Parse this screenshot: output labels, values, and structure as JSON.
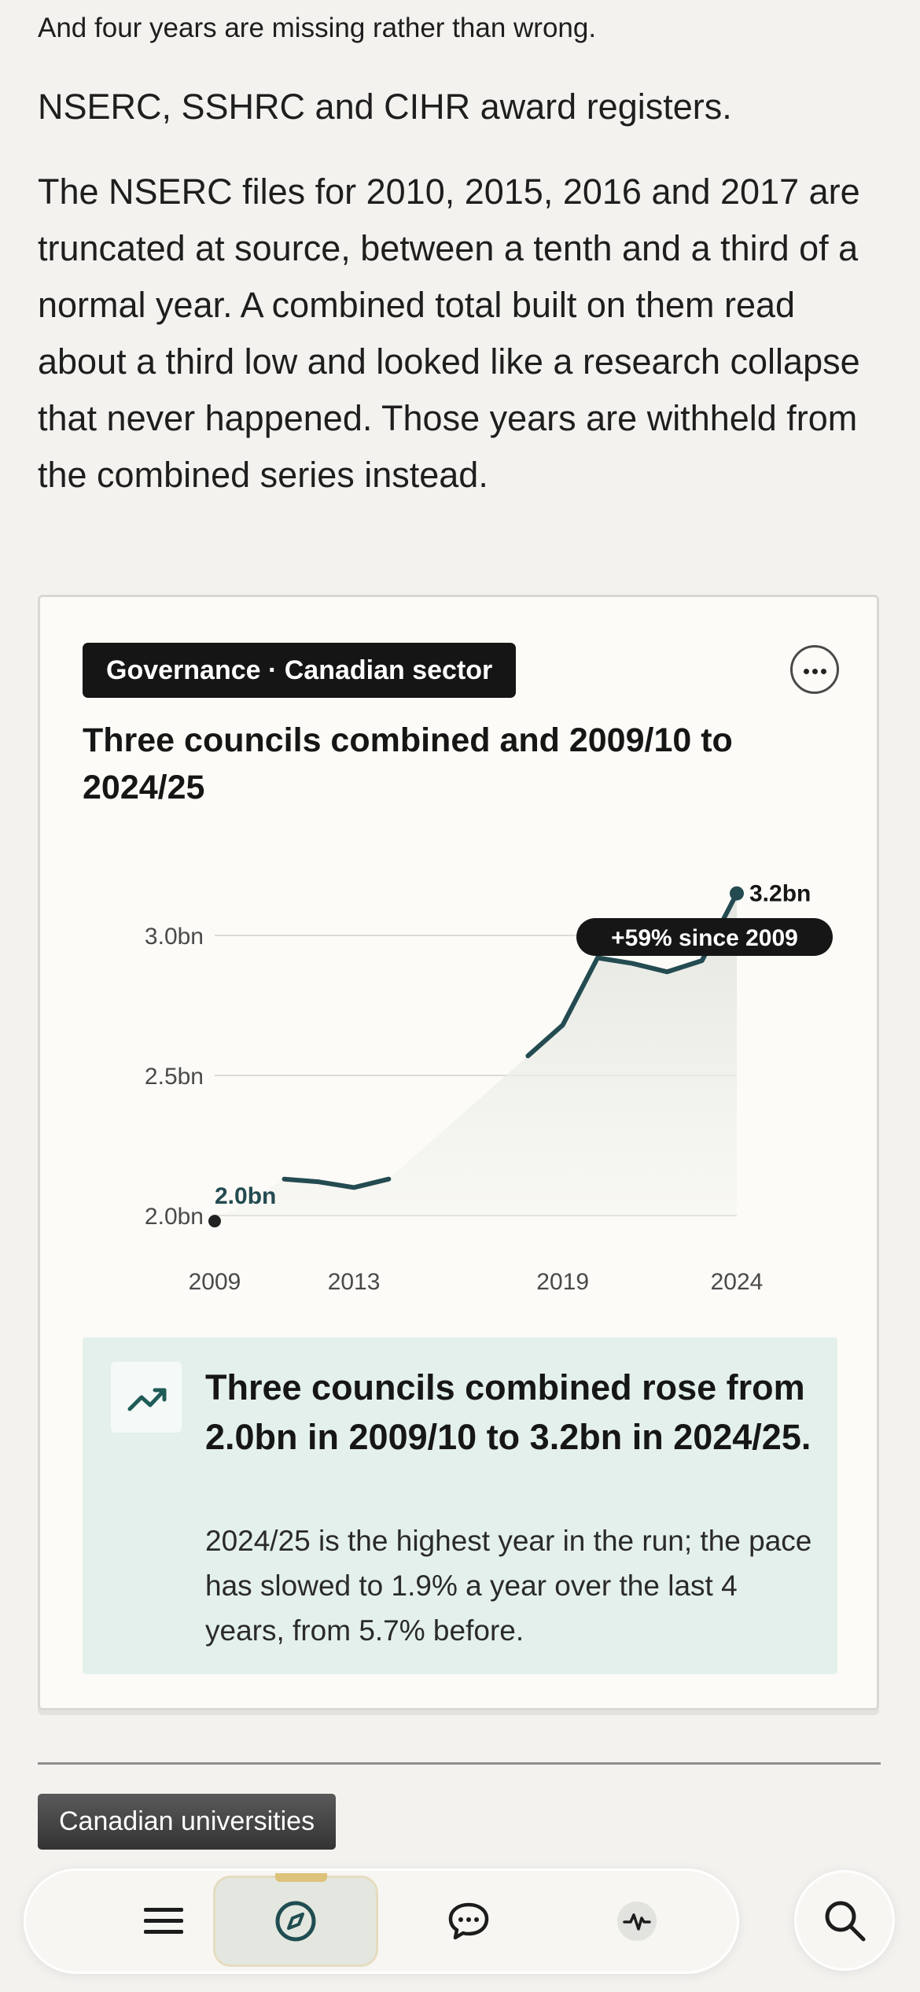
{
  "article": {
    "intro_line": "And four years are missing rather than wrong.",
    "subhead": "NSERC, SSHRC and CIHR award registers.",
    "body": "The NSERC files for 2010, 2015, 2016 and 2017 are truncated at source, between a tenth and a third of a normal year. A combined total built on them read about a third low and looked like a research collapse that never happened. Those years are withheld from the combined series instead."
  },
  "card": {
    "tag": "Governance · Canadian sector",
    "more_icon": "more-horizontal-icon",
    "title": "Three councils combined and 2009/10 to 2024/25"
  },
  "chart_data": {
    "type": "line",
    "title": "Three councils combined and 2009/10 to 2024/25",
    "xlabel": "",
    "ylabel": "",
    "x_ticks": [
      "2009",
      "2013",
      "2019",
      "2024"
    ],
    "y_ticks": [
      "2.0bn",
      "2.5bn",
      "3.0bn"
    ],
    "y_tick_values": [
      2.0,
      2.5,
      3.0
    ],
    "xlim": [
      2009,
      2024
    ],
    "ylim": [
      2.0,
      3.0
    ],
    "grid": true,
    "missing_years": [
      2010,
      2015,
      2016,
      2017
    ],
    "series": [
      {
        "values": [
          {
            "x": 2009,
            "y": 1.98
          },
          {
            "x": 2011,
            "y": 2.13
          },
          {
            "x": 2012,
            "y": 2.12
          },
          {
            "x": 2013,
            "y": 2.1
          },
          {
            "x": 2014,
            "y": 2.13
          },
          {
            "x": 2018,
            "y": 2.57
          },
          {
            "x": 2019,
            "y": 2.68
          },
          {
            "x": 2020,
            "y": 2.92
          },
          {
            "x": 2021,
            "y": 2.9
          },
          {
            "x": 2022,
            "y": 2.87
          },
          {
            "x": 2023,
            "y": 2.91
          },
          {
            "x": 2024,
            "y": 3.15
          }
        ]
      }
    ],
    "start_label": "2.0bn",
    "end_label": "3.2bn",
    "callout": "+59% since 2009",
    "line_color": "#234b51",
    "area_color": "#e6e8e2"
  },
  "insight": {
    "icon": "trending-up-icon",
    "headline": "Three councils combined rose from 2.0bn in 2009/10 to 3.2bn in 2024/25.",
    "body": "2024/25 is the highest year in the run; the pace has slowed to 1.9% a year over the last 4 years, from 5.7% before."
  },
  "section_tag": "Canadian universities",
  "nav": {
    "items": [
      {
        "icon": "menu-icon"
      },
      {
        "icon": "compass-icon",
        "active": true
      },
      {
        "icon": "chat-bubble-icon"
      },
      {
        "icon": "activity-pulse-icon"
      }
    ],
    "search_icon": "search-icon"
  }
}
